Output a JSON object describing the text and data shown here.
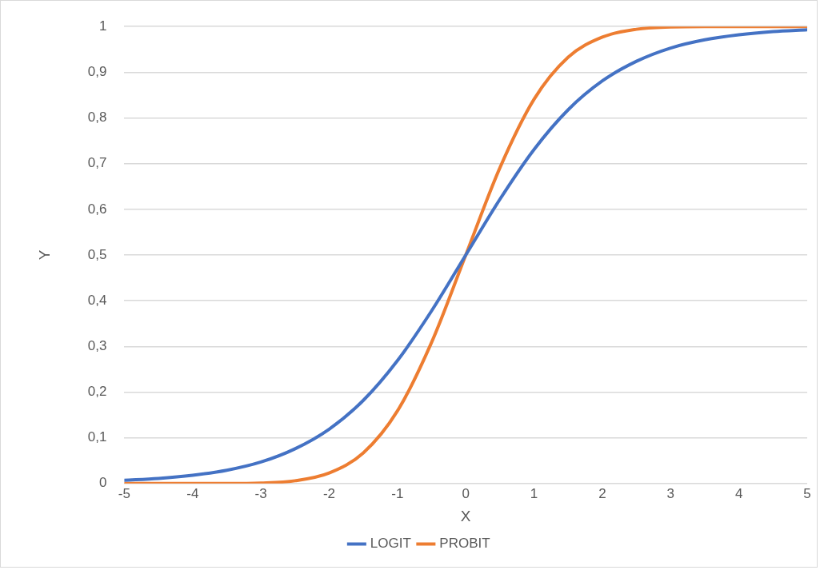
{
  "chart_data": {
    "type": "line",
    "xlabel": "X",
    "ylabel": "Y",
    "x": [
      -5,
      -4.5,
      -4,
      -3.5,
      -3,
      -2.5,
      -2,
      -1.5,
      -1,
      -0.5,
      0,
      0.5,
      1,
      1.5,
      2,
      2.5,
      3,
      3.5,
      4,
      4.5,
      5
    ],
    "series": [
      {
        "name": "LOGIT",
        "color": "#4472c4",
        "values": [
          0.007,
          0.011,
          0.018,
          0.029,
          0.047,
          0.076,
          0.119,
          0.182,
          0.269,
          0.378,
          0.5,
          0.622,
          0.731,
          0.818,
          0.881,
          0.924,
          0.953,
          0.971,
          0.982,
          0.989,
          0.993
        ]
      },
      {
        "name": "PROBIT",
        "color": "#ed7d31",
        "values": [
          0,
          0,
          0,
          0,
          0.001,
          0.006,
          0.023,
          0.067,
          0.159,
          0.309,
          0.5,
          0.691,
          0.841,
          0.933,
          0.977,
          0.994,
          0.999,
          1,
          1,
          1,
          1
        ]
      }
    ],
    "xlim": [
      -5,
      5
    ],
    "xticks": [
      -5,
      -4,
      -3,
      -2,
      -1,
      0,
      1,
      2,
      3,
      4,
      5
    ],
    "ylim": [
      0,
      1
    ],
    "yticks": [
      0,
      {
        "value": 0.1,
        "label": "0,1"
      },
      {
        "value": 0.2,
        "label": "0,2"
      },
      {
        "value": 0.3,
        "label": "0,3"
      },
      {
        "value": 0.4,
        "label": "0,4"
      },
      {
        "value": 0.5,
        "label": "0,5"
      },
      {
        "value": 0.6,
        "label": "0,6"
      },
      {
        "value": 0.7,
        "label": "0,7"
      },
      {
        "value": 0.8,
        "label": "0,8"
      },
      {
        "value": 0.9,
        "label": "0,9"
      },
      1
    ],
    "grid": "y",
    "legend": "bottom",
    "marker": "none",
    "line_style": "solid"
  }
}
